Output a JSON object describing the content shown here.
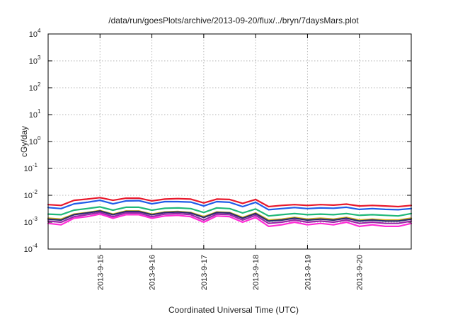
{
  "chart_data": {
    "type": "line",
    "title": "/data/run/goesPlots/archive/2013-09-20/flux/../bryn/7daysMars.plot",
    "xlabel": "Coordinated Universal Time (UTC)",
    "ylabel": "cGy/day",
    "y_scale": "log",
    "ylim": [
      0.0001,
      10000
    ],
    "xlim": [
      "2013-09-14 00:00",
      "2013-09-21 00:00"
    ],
    "grid": true,
    "legend": "none",
    "y_ticks": [
      {
        "base": "10",
        "exp": "-4"
      },
      {
        "base": "10",
        "exp": "-3"
      },
      {
        "base": "10",
        "exp": "-2"
      },
      {
        "base": "10",
        "exp": "-1"
      },
      {
        "base": "10",
        "exp": "0"
      },
      {
        "base": "10",
        "exp": "1"
      },
      {
        "base": "10",
        "exp": "2"
      },
      {
        "base": "10",
        "exp": "3"
      },
      {
        "base": "10",
        "exp": "4"
      }
    ],
    "x_ticks": [
      "2013-9-15",
      "2013-9-16",
      "2013-9-17",
      "2013-9-18",
      "2013-9-19",
      "2013-9-20"
    ],
    "x": [
      "2013-09-14 00:00",
      "2013-09-14 06:00",
      "2013-09-14 12:00",
      "2013-09-14 18:00",
      "2013-09-15 00:00",
      "2013-09-15 06:00",
      "2013-09-15 12:00",
      "2013-09-15 18:00",
      "2013-09-16 00:00",
      "2013-09-16 06:00",
      "2013-09-16 12:00",
      "2013-09-16 18:00",
      "2013-09-17 00:00",
      "2013-09-17 06:00",
      "2013-09-17 12:00",
      "2013-09-17 18:00",
      "2013-09-18 00:00",
      "2013-09-18 06:00",
      "2013-09-18 12:00",
      "2013-09-18 18:00",
      "2013-09-19 00:00",
      "2013-09-19 06:00",
      "2013-09-19 12:00",
      "2013-09-19 18:00",
      "2013-09-20 00:00",
      "2013-09-20 06:00",
      "2013-09-20 12:00",
      "2013-09-20 18:00",
      "2013-09-21 00:00"
    ],
    "series": [
      {
        "color": "#e8192c",
        "values": [
          0.0045,
          0.0042,
          0.0065,
          0.0072,
          0.0082,
          0.0065,
          0.0078,
          0.0078,
          0.0062,
          0.0072,
          0.0075,
          0.0072,
          0.0052,
          0.0072,
          0.007,
          0.005,
          0.007,
          0.0038,
          0.0042,
          0.0045,
          0.0042,
          0.0045,
          0.0043,
          0.0047,
          0.004,
          0.0042,
          0.004,
          0.0038,
          0.0042
        ]
      },
      {
        "color": "#1f5ce8",
        "values": [
          0.0035,
          0.0032,
          0.0048,
          0.0055,
          0.0065,
          0.0048,
          0.0062,
          0.0063,
          0.0048,
          0.0058,
          0.0058,
          0.0056,
          0.004,
          0.0058,
          0.0055,
          0.0038,
          0.0055,
          0.0029,
          0.0032,
          0.0035,
          0.0032,
          0.0034,
          0.0033,
          0.0036,
          0.003,
          0.0032,
          0.003,
          0.0029,
          0.0032
        ]
      },
      {
        "color": "#1fb878",
        "values": [
          0.002,
          0.0019,
          0.0028,
          0.0032,
          0.0037,
          0.0028,
          0.0036,
          0.0036,
          0.0028,
          0.0033,
          0.0034,
          0.0032,
          0.0023,
          0.0034,
          0.0032,
          0.0022,
          0.0031,
          0.0017,
          0.0019,
          0.0021,
          0.0019,
          0.002,
          0.0019,
          0.0021,
          0.0018,
          0.0019,
          0.0018,
          0.0017,
          0.0021
        ]
      },
      {
        "color": "#d6b71a",
        "values": [
          0.0014,
          0.0013,
          0.002,
          0.0023,
          0.0027,
          0.002,
          0.0026,
          0.0026,
          0.002,
          0.0024,
          0.0025,
          0.0023,
          0.0016,
          0.0024,
          0.0023,
          0.0015,
          0.0022,
          0.0012,
          0.0013,
          0.0015,
          0.0013,
          0.0014,
          0.0013,
          0.0015,
          0.0012,
          0.0013,
          0.0012,
          0.0012,
          0.0014
        ]
      },
      {
        "color": "#2b2b6e",
        "values": [
          0.0013,
          0.0012,
          0.0019,
          0.0022,
          0.0026,
          0.0019,
          0.0025,
          0.0025,
          0.0019,
          0.0023,
          0.0024,
          0.0022,
          0.0015,
          0.0023,
          0.0022,
          0.0014,
          0.0021,
          0.0011,
          0.0012,
          0.0014,
          0.0012,
          0.0013,
          0.0012,
          0.0014,
          0.0011,
          0.0012,
          0.0011,
          0.0011,
          0.0013
        ]
      },
      {
        "color": "#9a2aa8",
        "values": [
          0.0011,
          0.001,
          0.0016,
          0.0019,
          0.0023,
          0.0016,
          0.0022,
          0.0022,
          0.0016,
          0.002,
          0.0021,
          0.0019,
          0.0012,
          0.002,
          0.0019,
          0.0012,
          0.0018,
          0.0009,
          0.001,
          0.0012,
          0.001,
          0.0011,
          0.001,
          0.0012,
          0.0009,
          0.001,
          0.0009,
          0.0009,
          0.0011
        ]
      },
      {
        "color": "#ff2bd6",
        "values": [
          0.0009,
          0.0008,
          0.0014,
          0.0016,
          0.002,
          0.0014,
          0.0019,
          0.0019,
          0.0014,
          0.0017,
          0.0018,
          0.0016,
          0.001,
          0.0017,
          0.0016,
          0.001,
          0.0015,
          0.0007,
          0.0008,
          0.001,
          0.0008,
          0.0009,
          0.0008,
          0.001,
          0.0007,
          0.0008,
          0.0007,
          0.0007,
          0.0009
        ]
      }
    ]
  }
}
